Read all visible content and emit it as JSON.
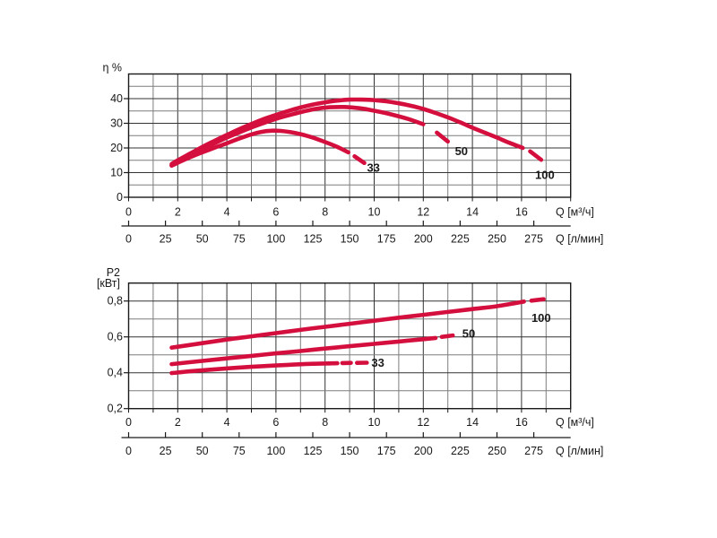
{
  "page": {
    "background": "#ffffff",
    "description": "Pump performance curves: efficiency and shaft power versus flow rate"
  },
  "colors": {
    "curve": "#d40f3e",
    "grid_major": "#333333",
    "grid_minor": "#7d7d7d",
    "frame": "#1a1a1a",
    "text": "#1a1a1a"
  },
  "chart_data": [
    {
      "type": "line",
      "id": "efficiency-chart",
      "title": "",
      "ylabel_lines": [
        "η %"
      ],
      "xlabel": "Q [м³/ч]",
      "xlabel2": "Q [л/мин]",
      "xlim": [
        0,
        18
      ],
      "ylim": [
        0,
        50
      ],
      "x_grid_step": 1,
      "x_label_step": 2,
      "y_grid_step": 5,
      "y_label_step": 10,
      "x_tick_labels": [
        "0",
        "2",
        "4",
        "6",
        "8",
        "10",
        "12",
        "14",
        "16"
      ],
      "y_tick_labels": [
        "0",
        "10",
        "20",
        "30",
        "40"
      ],
      "x2_ticks": [
        0,
        25,
        50,
        75,
        100,
        125,
        150,
        175,
        200,
        225,
        250,
        275
      ],
      "x2_tick_labels": [
        "0",
        "25",
        "50",
        "75",
        "100",
        "125",
        "150",
        "175",
        "200",
        "225",
        "250",
        "275"
      ],
      "x2_units_per_x": 16.6667,
      "grid": true,
      "legend": "curve labels inline at line ends",
      "series": [
        {
          "name": "33",
          "solid": [
            [
              1.75,
              12.8
            ],
            [
              2,
              14
            ],
            [
              2.5,
              16.2
            ],
            [
              3,
              18.2
            ],
            [
              3.5,
              20.1
            ],
            [
              4,
              21.9
            ],
            [
              4.5,
              23.8
            ],
            [
              5,
              25.5
            ],
            [
              5.4,
              26.5
            ],
            [
              5.8,
              27.0
            ],
            [
              6.2,
              26.9
            ],
            [
              6.6,
              26.4
            ],
            [
              7,
              25.6
            ],
            [
              7.5,
              24.2
            ],
            [
              8,
              22.4
            ],
            [
              8.5,
              20.4
            ],
            [
              8.95,
              18.2
            ]
          ],
          "dashes": [
            [
              [
                9.2,
                16.6
              ],
              [
                9.6,
                13.9
              ]
            ]
          ],
          "label": {
            "text": "33",
            "x": 9.97,
            "y": 12.0
          }
        },
        {
          "name": "50",
          "solid": [
            [
              1.75,
              13
            ],
            [
              2,
              14.3
            ],
            [
              2.5,
              17
            ],
            [
              3,
              19.5
            ],
            [
              3.5,
              21.9
            ],
            [
              4,
              24.2
            ],
            [
              4.5,
              26.3
            ],
            [
              5,
              28.3
            ],
            [
              5.5,
              30.1
            ],
            [
              6,
              31.8
            ],
            [
              6.5,
              33.2
            ],
            [
              7,
              34.5
            ],
            [
              7.6,
              35.8
            ],
            [
              8.2,
              36.5
            ],
            [
              8.8,
              36.6
            ],
            [
              9.4,
              36.1
            ],
            [
              10,
              35.1
            ],
            [
              10.7,
              33.6
            ],
            [
              11.4,
              31.7
            ],
            [
              12,
              29.6
            ]
          ],
          "dashes": [
            [
              [
                12.55,
                26.2
              ],
              [
                13.0,
                22.6
              ]
            ]
          ],
          "label": {
            "text": "50",
            "x": 13.55,
            "y": 18.8
          }
        },
        {
          "name": "100",
          "solid": [
            [
              1.75,
              13.5
            ],
            [
              2,
              15
            ],
            [
              2.5,
              17.7
            ],
            [
              3,
              20.4
            ],
            [
              3.5,
              22.9
            ],
            [
              4,
              25.3
            ],
            [
              4.5,
              27.6
            ],
            [
              5,
              29.7
            ],
            [
              5.5,
              31.7
            ],
            [
              6,
              33.4
            ],
            [
              6.5,
              35
            ],
            [
              7,
              36.4
            ],
            [
              7.5,
              37.6
            ],
            [
              8,
              38.5
            ],
            [
              8.5,
              39.2
            ],
            [
              9,
              39.6
            ],
            [
              9.5,
              39.6
            ],
            [
              10,
              39.4
            ],
            [
              10.5,
              38.9
            ],
            [
              11,
              38.1
            ],
            [
              11.5,
              37.1
            ],
            [
              12,
              35.8
            ],
            [
              12.5,
              34.2
            ],
            [
              13,
              32.4
            ],
            [
              13.5,
              30.4
            ],
            [
              14,
              28.2
            ],
            [
              14.5,
              26.2
            ],
            [
              15,
              24.2
            ],
            [
              15.5,
              22.1
            ],
            [
              16.05,
              20
            ]
          ],
          "dashes": [
            [
              [
                16.35,
                18.6
              ],
              [
                16.8,
                15.2
              ]
            ]
          ],
          "label": {
            "text": "100",
            "x": 16.95,
            "y": 9.1
          }
        }
      ]
    },
    {
      "type": "line",
      "id": "power-chart",
      "title": "",
      "ylabel_lines": [
        "P2",
        "[кВт]"
      ],
      "xlabel": "Q [м³/ч]",
      "xlabel2": "Q [л/мин]",
      "xlim": [
        0,
        18
      ],
      "ylim": [
        0.2,
        0.9
      ],
      "x_grid_step": 1,
      "x_label_step": 2,
      "y_grid_step": 0.1,
      "y_label_step": 0.2,
      "x_tick_labels": [
        "0",
        "2",
        "4",
        "6",
        "8",
        "10",
        "12",
        "14",
        "16"
      ],
      "y_tick_labels": [
        "0,2",
        "0,4",
        "0,6",
        "0,8"
      ],
      "x2_ticks": [
        0,
        25,
        50,
        75,
        100,
        125,
        150,
        175,
        200,
        225,
        250,
        275
      ],
      "x2_tick_labels": [
        "0",
        "25",
        "50",
        "75",
        "100",
        "125",
        "150",
        "175",
        "200",
        "225",
        "250",
        "275"
      ],
      "x2_units_per_x": 16.6667,
      "grid": true,
      "legend": "curve labels inline at line ends",
      "series": [
        {
          "name": "33",
          "solid": [
            [
              1.75,
              0.398
            ],
            [
              2.5,
              0.408
            ],
            [
              3.5,
              0.419
            ],
            [
              4.5,
              0.429
            ],
            [
              5.5,
              0.437
            ],
            [
              6.5,
              0.444
            ],
            [
              7.5,
              0.45
            ],
            [
              8.5,
              0.453
            ]
          ],
          "dashes": [
            [
              [
                8.7,
                0.454
              ],
              [
                9.05,
                0.455
              ]
            ],
            [
              [
                9.3,
                0.455
              ],
              [
                9.7,
                0.456
              ]
            ]
          ],
          "label": {
            "text": "33",
            "x": 10.15,
            "y": 0.456
          }
        },
        {
          "name": "50",
          "solid": [
            [
              1.75,
              0.448
            ],
            [
              3,
              0.466
            ],
            [
              4,
              0.48
            ],
            [
              5,
              0.494
            ],
            [
              6,
              0.508
            ],
            [
              7,
              0.521
            ],
            [
              8,
              0.535
            ],
            [
              9,
              0.548
            ],
            [
              10,
              0.561
            ],
            [
              11,
              0.574
            ],
            [
              12,
              0.587
            ],
            [
              12.5,
              0.594
            ]
          ],
          "dashes": [
            [
              [
                12.75,
                0.6
              ],
              [
                13.2,
                0.608
              ]
            ]
          ],
          "label": {
            "text": "50",
            "x": 13.85,
            "y": 0.618
          }
        },
        {
          "name": "100",
          "solid": [
            [
              1.75,
              0.54
            ],
            [
              3,
              0.565
            ],
            [
              4,
              0.585
            ],
            [
              5,
              0.603
            ],
            [
              6,
              0.621
            ],
            [
              7,
              0.639
            ],
            [
              8,
              0.656
            ],
            [
              9,
              0.673
            ],
            [
              10,
              0.69
            ],
            [
              11,
              0.707
            ],
            [
              12,
              0.723
            ],
            [
              13,
              0.739
            ],
            [
              14,
              0.755
            ],
            [
              15,
              0.771
            ],
            [
              16.1,
              0.797
            ]
          ],
          "dashes": [
            [
              [
                16.4,
                0.802
              ],
              [
                16.9,
                0.81
              ]
            ]
          ],
          "label": {
            "text": "100",
            "x": 16.8,
            "y": 0.705
          }
        }
      ]
    }
  ]
}
